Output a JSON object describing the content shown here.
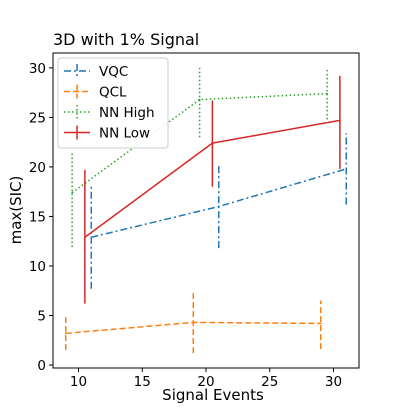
{
  "chart_data": {
    "type": "line",
    "title": "3D with 1% Signal",
    "xlabel": "Signal Events",
    "ylabel": "max(SIC)",
    "xlim": [
      8,
      32
    ],
    "ylim": [
      -0.3,
      31.5
    ],
    "xticks": [
      10,
      15,
      20,
      25,
      30
    ],
    "yticks": [
      0,
      5,
      10,
      15,
      20,
      25,
      30
    ],
    "grid": false,
    "legend_position": "top-left",
    "series": [
      {
        "name": "VQC",
        "color": "#1f77b4",
        "linestyle": "dashdot",
        "x": [
          11,
          21,
          31
        ],
        "y": [
          12.9,
          16.0,
          19.8
        ],
        "yerr_low": [
          7.7,
          11.8,
          16.2
        ],
        "yerr_high": [
          18.3,
          20.3,
          23.4
        ]
      },
      {
        "name": "QCL",
        "color": "#ff7f0e",
        "linestyle": "dashed",
        "x": [
          9,
          19,
          29
        ],
        "y": [
          3.2,
          4.3,
          4.2
        ],
        "yerr_low": [
          1.5,
          1.2,
          1.6
        ],
        "yerr_high": [
          4.9,
          7.3,
          6.5
        ]
      },
      {
        "name": "NN High",
        "color": "#2ca02c",
        "linestyle": "dotted",
        "x": [
          9.5,
          19.5,
          29.5
        ],
        "y": [
          17.4,
          26.8,
          27.4
        ],
        "yerr_low": [
          11.9,
          23.0,
          24.8
        ],
        "yerr_high": [
          21.4,
          30.0,
          30.0
        ]
      },
      {
        "name": "NN Low",
        "color": "#d62728",
        "linestyle": "solid",
        "x": [
          10.5,
          20.5,
          30.5
        ],
        "y": [
          12.9,
          22.4,
          24.7
        ],
        "yerr_low": [
          6.2,
          18.0,
          19.8
        ],
        "yerr_high": [
          19.7,
          26.7,
          29.2
        ]
      }
    ]
  }
}
